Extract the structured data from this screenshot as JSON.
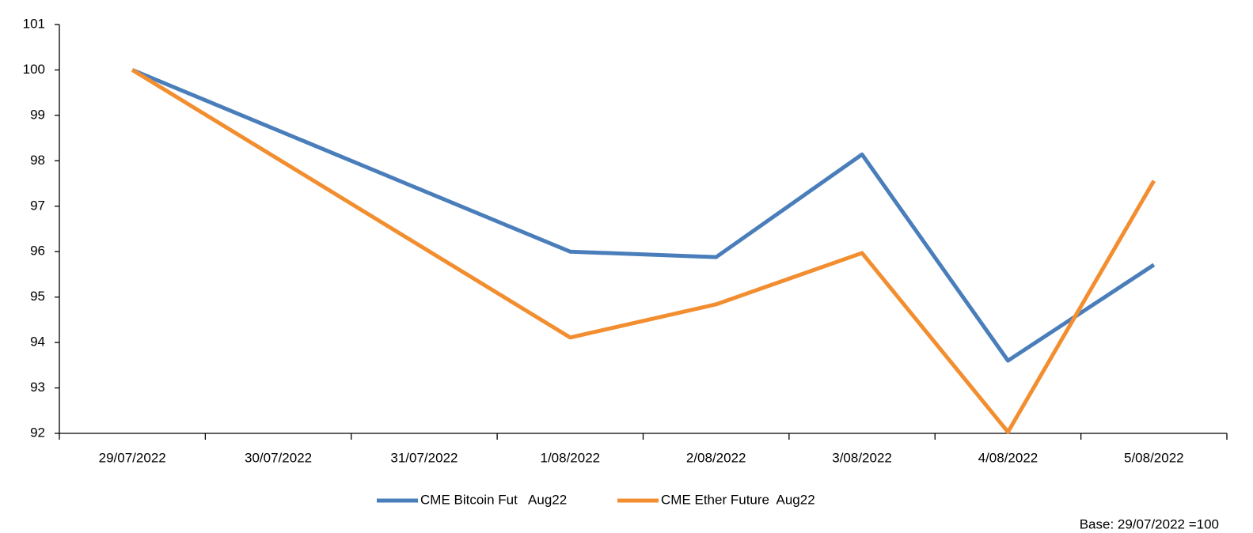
{
  "chart_data": {
    "type": "line",
    "categories": [
      "29/07/2022",
      "30/07/2022",
      "31/07/2022",
      "1/08/2022",
      "2/08/2022",
      "3/08/2022",
      "4/08/2022",
      "5/08/2022"
    ],
    "series": [
      {
        "name": "CME Bitcoin Fut   Aug22",
        "color": "#4a7ebb",
        "values": [
          100,
          null,
          null,
          96.0,
          95.88,
          98.14,
          93.6,
          95.71
        ]
      },
      {
        "name": "CME Ether Future  Aug22",
        "color": "#f28e30",
        "values": [
          100,
          null,
          null,
          94.11,
          94.84,
          95.97,
          92.03,
          97.56
        ]
      }
    ],
    "span_gaps": true,
    "ylim": [
      92,
      101
    ],
    "yticks": [
      92,
      93,
      94,
      95,
      96,
      97,
      98,
      99,
      100,
      101
    ],
    "legend": "bottom",
    "footnote": "Base:  29/07/2022 =100"
  }
}
